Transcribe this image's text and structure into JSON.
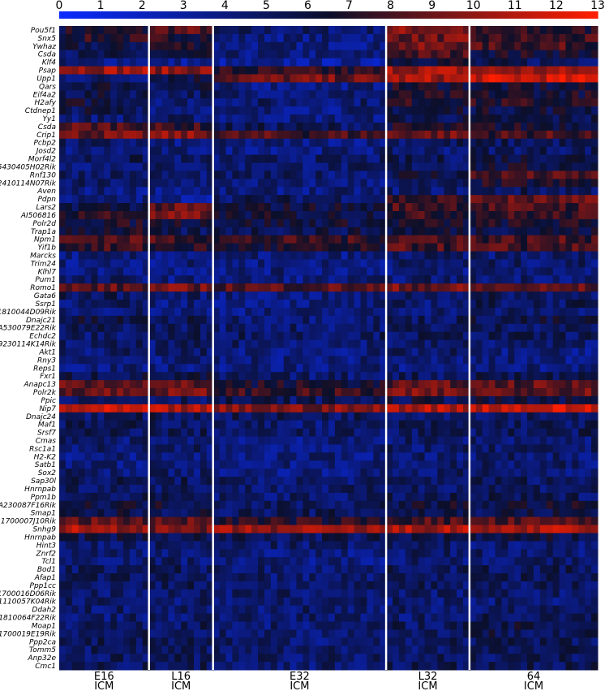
{
  "chart_data": {
    "type": "heatmap",
    "title": "",
    "xlabel": "",
    "ylabel": "",
    "colorbar": {
      "min": 0,
      "max": 13,
      "ticks": [
        "0",
        "1",
        "2",
        "3",
        "4",
        "5",
        "6",
        "7",
        "8",
        "9",
        "10",
        "11",
        "12",
        "13"
      ],
      "low_color": "#0a2cff",
      "mid_color": "#0b0f2a",
      "high_color": "#ff1e00"
    },
    "groups": [
      {
        "line1": "E16",
        "line2": "ICM",
        "n_cells": 14
      },
      {
        "line1": "L16",
        "line2": "ICM",
        "n_cells": 10
      },
      {
        "line1": "E32",
        "line2": "ICM",
        "n_cells": 27
      },
      {
        "line1": "L32",
        "line2": "ICM",
        "n_cells": 13
      },
      {
        "line1": "64",
        "line2": "ICM",
        "n_cells": 20
      }
    ],
    "genes": [
      {
        "name": "Pou5f1",
        "means": [
          6.5,
          8.5,
          4.5,
          9.5,
          7.0
        ]
      },
      {
        "name": "Snx5",
        "means": [
          7.0,
          7.0,
          4.0,
          9.0,
          7.5
        ]
      },
      {
        "name": "Ywhaz",
        "means": [
          5.5,
          7.0,
          4.0,
          9.0,
          8.0
        ]
      },
      {
        "name": "Csda",
        "means": [
          5.0,
          5.5,
          4.0,
          8.0,
          6.5
        ]
      },
      {
        "name": "Klf4",
        "means": [
          4.0,
          3.5,
          3.0,
          6.5,
          5.0
        ]
      },
      {
        "name": "Psap",
        "means": [
          10.5,
          10.0,
          7.0,
          10.5,
          10.0
        ]
      },
      {
        "name": "Upp1",
        "means": [
          4.5,
          6.0,
          9.0,
          10.5,
          11.5
        ]
      },
      {
        "name": "Qars",
        "means": [
          6.0,
          5.5,
          4.0,
          6.5,
          6.0
        ]
      },
      {
        "name": "Eif4a2",
        "means": [
          5.5,
          5.0,
          4.5,
          6.5,
          6.5
        ]
      },
      {
        "name": "H2afy",
        "means": [
          6.0,
          4.5,
          4.5,
          7.0,
          7.0
        ]
      },
      {
        "name": "Ctdnep1",
        "means": [
          5.5,
          4.5,
          4.0,
          6.0,
          6.0
        ]
      },
      {
        "name": "Yy1",
        "means": [
          4.5,
          4.5,
          4.0,
          5.5,
          5.5
        ]
      },
      {
        "name": "Csda",
        "means": [
          8.5,
          7.5,
          5.0,
          6.5,
          6.5
        ]
      },
      {
        "name": "Crip1",
        "means": [
          9.0,
          9.5,
          8.0,
          9.0,
          8.0
        ]
      },
      {
        "name": "Pcbp2",
        "means": [
          4.5,
          4.0,
          4.0,
          5.0,
          5.0
        ]
      },
      {
        "name": "Josd2",
        "means": [
          4.0,
          4.0,
          4.0,
          4.5,
          5.0
        ]
      },
      {
        "name": "Morf4l2",
        "means": [
          5.0,
          4.5,
          4.5,
          5.0,
          6.0
        ]
      },
      {
        "name": "5430405H02Rik",
        "means": [
          4.5,
          4.5,
          4.5,
          5.0,
          6.0
        ]
      },
      {
        "name": "Rnf130",
        "means": [
          5.0,
          4.5,
          4.5,
          6.0,
          8.0
        ]
      },
      {
        "name": "2410114N07Rik",
        "means": [
          4.5,
          4.5,
          4.0,
          4.5,
          6.5
        ]
      },
      {
        "name": "Aven",
        "means": [
          4.0,
          4.0,
          4.0,
          4.5,
          5.0
        ]
      },
      {
        "name": "Pdpn",
        "means": [
          4.0,
          3.5,
          5.0,
          7.5,
          8.5
        ]
      },
      {
        "name": "Lars2",
        "means": [
          6.0,
          8.5,
          6.0,
          8.0,
          8.0
        ]
      },
      {
        "name": "AI506816",
        "means": [
          7.5,
          9.0,
          6.0,
          7.5,
          7.5
        ]
      },
      {
        "name": "Polr2d",
        "means": [
          6.5,
          6.5,
          6.0,
          6.5,
          6.5
        ]
      },
      {
        "name": "Trap1a",
        "means": [
          6.5,
          5.0,
          5.5,
          6.0,
          6.0
        ]
      },
      {
        "name": "Npm1",
        "means": [
          8.5,
          8.0,
          7.5,
          8.5,
          8.0
        ]
      },
      {
        "name": "Yif1b",
        "means": [
          7.5,
          7.0,
          6.5,
          8.0,
          8.0
        ]
      },
      {
        "name": "Marcks",
        "means": [
          4.0,
          4.0,
          4.0,
          4.5,
          4.5
        ]
      },
      {
        "name": "Trim24",
        "means": [
          4.0,
          4.0,
          4.0,
          4.5,
          4.5
        ]
      },
      {
        "name": "Klhl7",
        "means": [
          4.0,
          4.0,
          4.0,
          4.0,
          4.5
        ]
      },
      {
        "name": "Pum1",
        "means": [
          4.5,
          4.0,
          4.0,
          4.5,
          4.5
        ]
      },
      {
        "name": "Romo1",
        "means": [
          8.5,
          9.0,
          8.5,
          9.0,
          8.5
        ]
      },
      {
        "name": "Gata6",
        "means": [
          5.0,
          4.5,
          4.0,
          5.0,
          5.0
        ]
      },
      {
        "name": "Ssrp1",
        "means": [
          4.5,
          4.0,
          4.0,
          4.5,
          5.0
        ]
      },
      {
        "name": "1810044D09Rik",
        "means": [
          4.5,
          4.0,
          4.0,
          4.5,
          4.5
        ]
      },
      {
        "name": "Dnajc21",
        "means": [
          5.5,
          5.0,
          4.5,
          5.0,
          5.5
        ]
      },
      {
        "name": "A530079E22Rik",
        "means": [
          5.0,
          5.0,
          4.5,
          5.0,
          5.0
        ]
      },
      {
        "name": "Echdc2",
        "means": [
          4.5,
          5.0,
          5.0,
          5.0,
          5.0
        ]
      },
      {
        "name": "9230114K14Rik",
        "means": [
          4.5,
          4.5,
          4.5,
          4.5,
          4.5
        ]
      },
      {
        "name": "Akt1",
        "means": [
          4.5,
          4.5,
          4.0,
          4.5,
          4.0
        ]
      },
      {
        "name": "Rny3",
        "means": [
          4.0,
          4.0,
          4.0,
          4.0,
          4.0
        ]
      },
      {
        "name": "Reps1",
        "means": [
          4.0,
          4.0,
          4.0,
          4.0,
          4.0
        ]
      },
      {
        "name": "Fxr1",
        "means": [
          5.5,
          5.5,
          4.5,
          5.0,
          5.5
        ]
      },
      {
        "name": "Anapc13",
        "means": [
          9.0,
          8.5,
          6.5,
          8.5,
          8.5
        ]
      },
      {
        "name": "Polr2k",
        "means": [
          9.0,
          9.0,
          7.5,
          9.0,
          9.0
        ]
      },
      {
        "name": "Ppic",
        "means": [
          5.0,
          5.0,
          5.0,
          5.5,
          5.5
        ]
      },
      {
        "name": "Nip7",
        "means": [
          11.0,
          10.5,
          9.5,
          11.0,
          11.5
        ]
      },
      {
        "name": "Dnajc24",
        "means": [
          5.0,
          5.0,
          5.0,
          5.0,
          5.0
        ]
      },
      {
        "name": "Maf1",
        "means": [
          5.0,
          5.0,
          4.5,
          5.0,
          5.0
        ]
      },
      {
        "name": "Srsf7",
        "means": [
          5.0,
          5.0,
          4.5,
          5.0,
          5.0
        ]
      },
      {
        "name": "Cmas",
        "means": [
          4.5,
          4.5,
          4.0,
          4.5,
          4.5
        ]
      },
      {
        "name": "Rsc1a1",
        "means": [
          4.5,
          4.5,
          4.0,
          4.5,
          4.5
        ]
      },
      {
        "name": "H2-K2",
        "means": [
          4.0,
          4.0,
          4.0,
          4.5,
          4.5
        ]
      },
      {
        "name": "Satb1",
        "means": [
          4.0,
          4.0,
          4.0,
          4.5,
          4.5
        ]
      },
      {
        "name": "Sox2",
        "means": [
          4.5,
          4.5,
          4.0,
          4.5,
          4.5
        ]
      },
      {
        "name": "Sap30l",
        "means": [
          5.0,
          5.0,
          4.5,
          5.0,
          5.0
        ]
      },
      {
        "name": "Hnrnpab",
        "means": [
          5.0,
          5.0,
          4.5,
          5.0,
          5.0
        ]
      },
      {
        "name": "Ppm1b",
        "means": [
          5.0,
          5.0,
          4.5,
          5.0,
          5.0
        ]
      },
      {
        "name": "A230087F16Rik",
        "means": [
          6.0,
          6.0,
          5.0,
          6.0,
          6.0
        ]
      },
      {
        "name": "Smap1",
        "means": [
          5.5,
          5.5,
          5.0,
          5.5,
          5.5
        ]
      },
      {
        "name": "1700007J10Rik",
        "means": [
          8.5,
          8.5,
          7.0,
          8.0,
          8.0
        ]
      },
      {
        "name": "Snhg9",
        "means": [
          10.5,
          9.0,
          10.0,
          10.5,
          10.5
        ]
      },
      {
        "name": "Hnrnpab",
        "means": [
          5.5,
          5.5,
          5.0,
          5.5,
          5.5
        ]
      },
      {
        "name": "Hint3",
        "means": [
          4.5,
          4.5,
          4.5,
          4.5,
          4.5
        ]
      },
      {
        "name": "Znrf2",
        "means": [
          4.5,
          4.5,
          4.0,
          4.5,
          4.5
        ]
      },
      {
        "name": "Tcl1",
        "means": [
          4.5,
          4.5,
          4.0,
          4.5,
          4.5
        ]
      },
      {
        "name": "Bod1",
        "means": [
          5.0,
          5.0,
          4.5,
          5.0,
          5.0
        ]
      },
      {
        "name": "Afap1",
        "means": [
          5.0,
          5.0,
          4.5,
          5.0,
          5.0
        ]
      },
      {
        "name": "Ppp1cc",
        "means": [
          5.0,
          5.0,
          4.5,
          5.0,
          5.0
        ]
      },
      {
        "name": "1700016D06Rik",
        "means": [
          4.5,
          4.5,
          4.5,
          4.5,
          4.5
        ]
      },
      {
        "name": "1110057K04Rik",
        "means": [
          4.5,
          4.5,
          4.5,
          4.5,
          4.5
        ]
      },
      {
        "name": "Ddah2",
        "means": [
          4.5,
          4.5,
          4.5,
          4.5,
          4.5
        ]
      },
      {
        "name": "1810064F22Rik",
        "means": [
          4.5,
          4.5,
          4.5,
          4.5,
          5.0
        ]
      },
      {
        "name": "Moap1",
        "means": [
          5.0,
          5.0,
          4.5,
          5.0,
          5.5
        ]
      },
      {
        "name": "1700019E19Rik",
        "means": [
          5.0,
          5.0,
          4.5,
          5.0,
          5.5
        ]
      },
      {
        "name": "Ppp2ca",
        "means": [
          5.0,
          5.0,
          4.5,
          5.0,
          5.0
        ]
      },
      {
        "name": "Tomm5",
        "means": [
          5.0,
          5.0,
          4.5,
          5.0,
          5.0
        ]
      },
      {
        "name": "Anp32e",
        "means": [
          5.0,
          5.0,
          4.5,
          5.0,
          5.0
        ]
      },
      {
        "name": "Cmc1",
        "means": [
          5.0,
          5.0,
          4.5,
          5.0,
          5.0
        ]
      }
    ]
  }
}
